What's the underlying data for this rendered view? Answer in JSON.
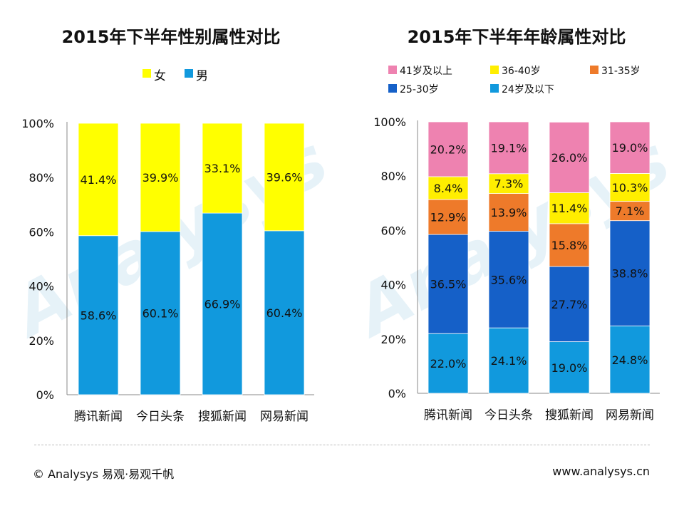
{
  "colors": {
    "female": "#FFFF00",
    "male": "#1199DD",
    "age_41plus": "#EE82B0",
    "age_36_40": "#FFEE00",
    "age_31_35": "#EE7A2A",
    "age_25_30": "#1560C8",
    "age_24minus": "#1199DD"
  },
  "chart_data": [
    {
      "type": "bar",
      "stacked": true,
      "title": "2015年下半年性别属性对比",
      "categories": [
        "腾讯新闻",
        "今日头条",
        "搜狐新闻",
        "网易新闻"
      ],
      "series": [
        {
          "name": "男",
          "values": [
            58.6,
            60.1,
            66.9,
            60.4
          ],
          "labels": [
            "58.6%",
            "60.1%",
            "66.9%",
            "60.4%"
          ]
        },
        {
          "name": "女",
          "values": [
            41.4,
            39.9,
            33.1,
            39.6
          ],
          "labels": [
            "41.4%",
            "39.9%",
            "33.1%",
            "39.6%"
          ]
        }
      ],
      "legend": [
        "女",
        "男"
      ],
      "yticks": [
        "0%",
        "20%",
        "40%",
        "60%",
        "80%",
        "100%"
      ],
      "ylim": [
        0,
        100
      ]
    },
    {
      "type": "bar",
      "stacked": true,
      "title": "2015年下半年年龄属性对比",
      "categories": [
        "腾讯新闻",
        "今日头条",
        "搜狐新闻",
        "网易新闻"
      ],
      "series": [
        {
          "name": "24岁及以下",
          "values": [
            22.0,
            24.1,
            19.0,
            24.8
          ],
          "labels": [
            "22.0%",
            "24.1%",
            "19.0%",
            "24.8%"
          ]
        },
        {
          "name": "25-30岁",
          "values": [
            36.5,
            35.6,
            27.7,
            38.8
          ],
          "labels": [
            "36.5%",
            "35.6%",
            "27.7%",
            "38.8%"
          ]
        },
        {
          "name": "31-35岁",
          "values": [
            12.9,
            13.9,
            15.8,
            7.1
          ],
          "labels": [
            "12.9%",
            "13.9%",
            "15.8%",
            "7.1%"
          ]
        },
        {
          "name": "36-40岁",
          "values": [
            8.4,
            7.3,
            11.4,
            10.3
          ],
          "labels": [
            "8.4%",
            "7.3%",
            "11.4%",
            "10.3%"
          ]
        },
        {
          "name": "41岁及以上",
          "values": [
            20.2,
            19.1,
            26.0,
            19.0
          ],
          "labels": [
            "20.2%",
            "19.1%",
            "26.0%",
            "19.0%"
          ]
        }
      ],
      "legend": [
        "41岁及以上",
        "36-40岁",
        "31-35岁",
        "25-30岁",
        "24岁及以下"
      ],
      "yticks": [
        "0%",
        "20%",
        "40%",
        "60%",
        "80%",
        "100%"
      ],
      "ylim": [
        0,
        100
      ]
    }
  ],
  "footer": {
    "copyright": "© Analysys 易观·易观千帆",
    "website": "www.analysys.cn"
  }
}
